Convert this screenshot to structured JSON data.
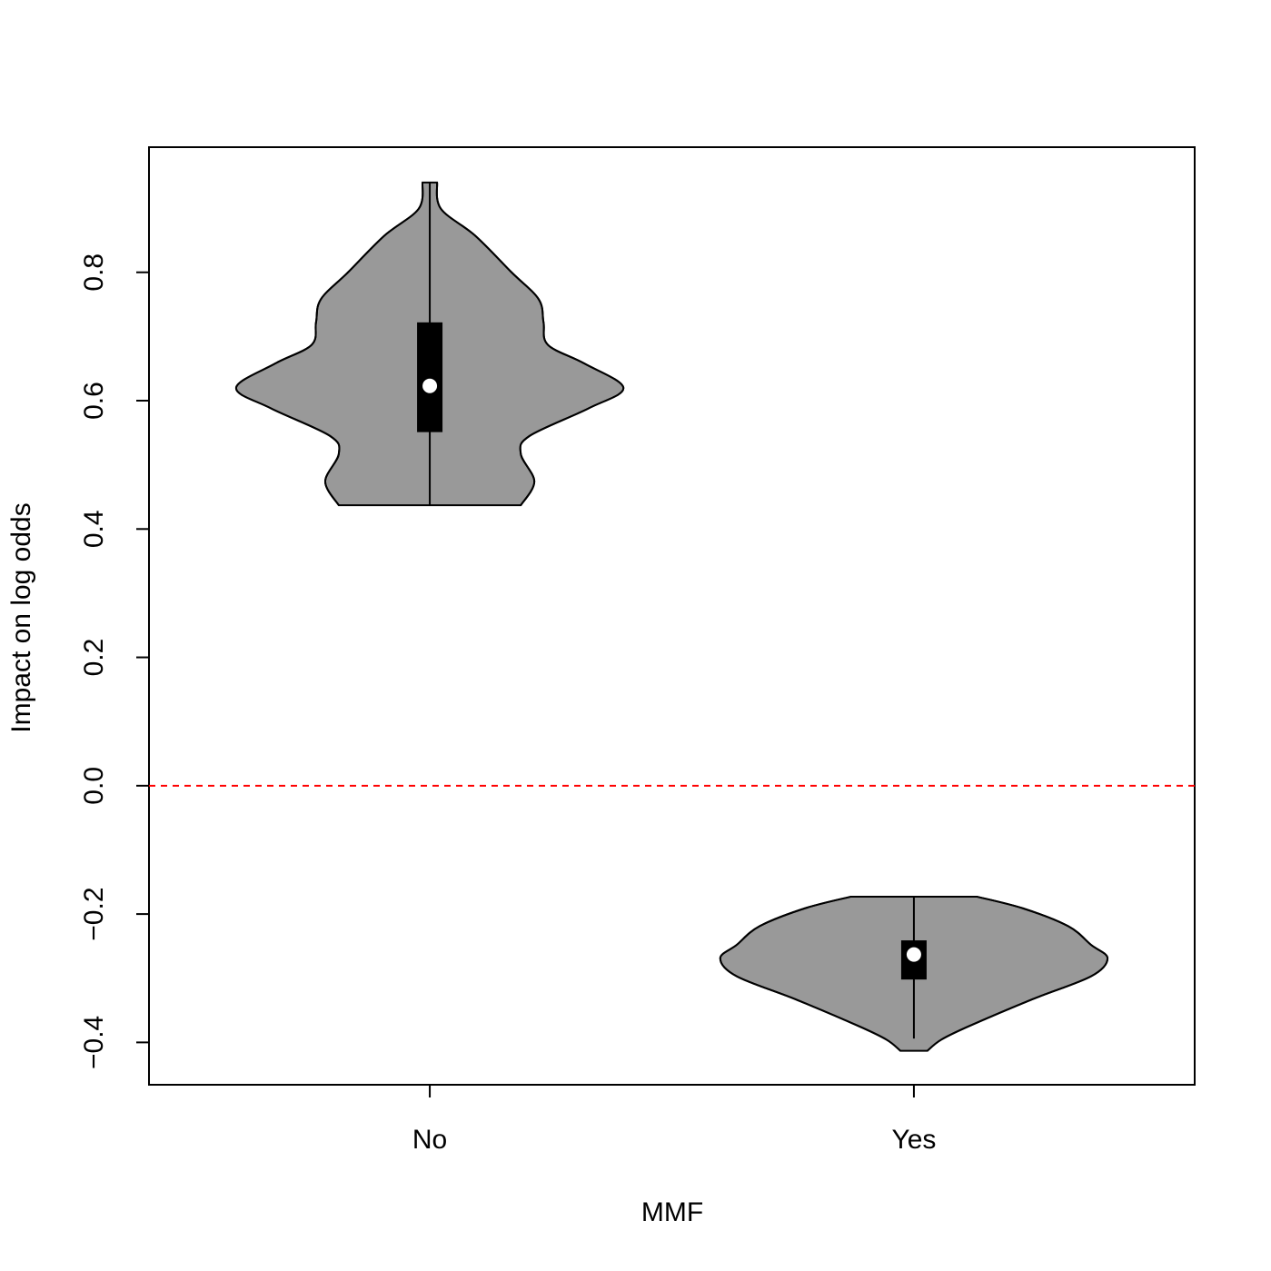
{
  "chart_data": {
    "type": "violin",
    "x_label": "MMF",
    "y_label": "Impact on log odds",
    "categories": [
      "No",
      "Yes"
    ],
    "xlim": [
      0.42,
      2.58
    ],
    "ylim": [
      -0.466,
      0.995
    ],
    "yticks": [
      {
        "value": -0.4,
        "label": "−0.4"
      },
      {
        "value": -0.2,
        "label": "−0.2"
      },
      {
        "value": 0,
        "label": "0.0"
      },
      0.2,
      0.4,
      0.6,
      0.8
    ],
    "fill": "#999999",
    "hline": {
      "value": 0,
      "color": "#ff0000"
    },
    "violins": [
      {
        "min": 0.437,
        "q1": 0.551,
        "median": 0.623,
        "q3": 0.722,
        "max": 0.94,
        "density_y": [
          0.94,
          0.899,
          0.857,
          0.8,
          0.758,
          0.722,
          0.687,
          0.658,
          0.62,
          0.588,
          0.545,
          0.517,
          0.474,
          0.437
        ],
        "density_width": [
          0.015,
          0.023,
          0.094,
          0.169,
          0.225,
          0.235,
          0.244,
          0.319,
          0.4,
          0.328,
          0.206,
          0.188,
          0.216,
          0.188
        ]
      },
      {
        "min": -0.394,
        "q1": -0.302,
        "median": -0.263,
        "q3": -0.241,
        "max": -0.173,
        "density_y": [
          -0.173,
          -0.191,
          -0.219,
          -0.248,
          -0.269,
          -0.297,
          -0.333,
          -0.375,
          -0.396,
          -0.413
        ],
        "density_width": [
          0.131,
          0.225,
          0.319,
          0.366,
          0.4,
          0.366,
          0.244,
          0.113,
          0.056,
          0.028
        ]
      }
    ]
  }
}
